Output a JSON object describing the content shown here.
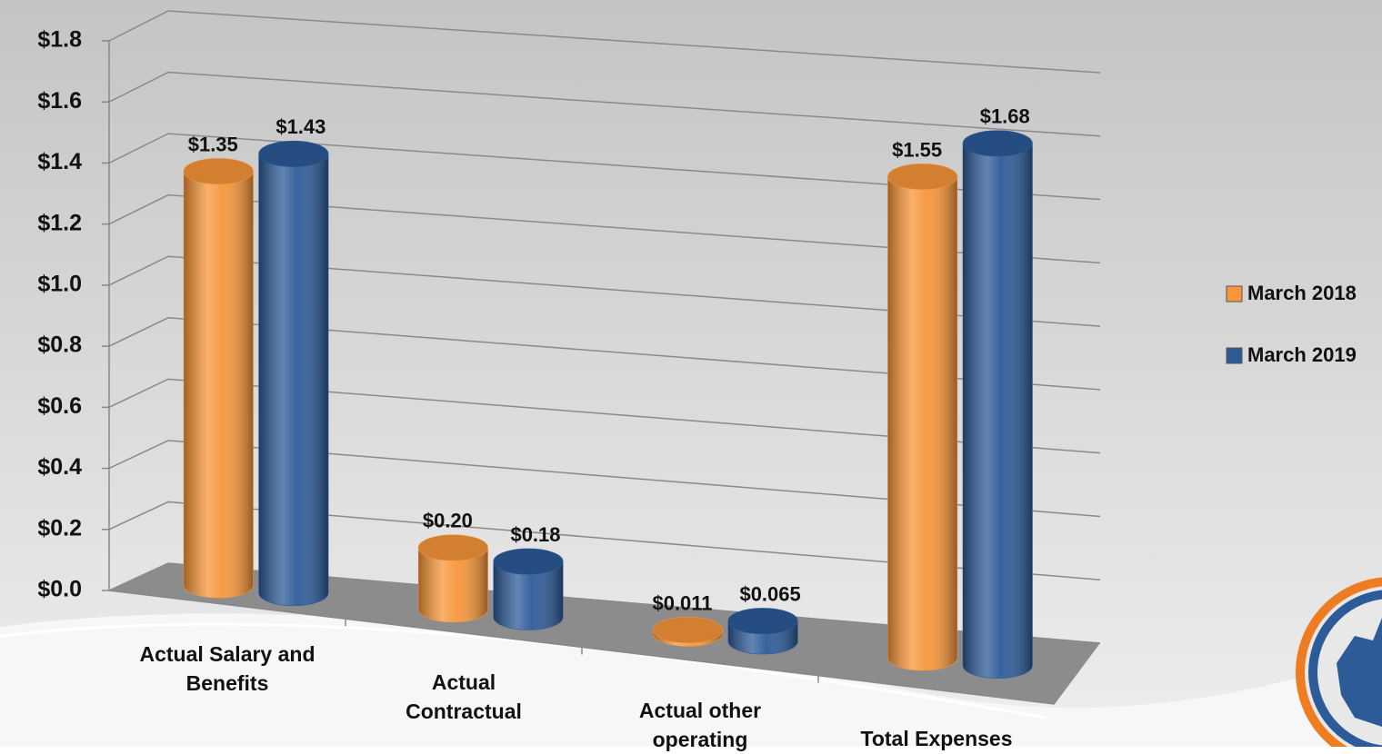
{
  "chart_data": {
    "type": "bar3d",
    "categories": [
      "Actual Salary and Benefits",
      "Actual Contractual",
      "Actual other operating",
      "Total Expenses"
    ],
    "series": [
      {
        "name": "March 2018",
        "color": "#f7963a",
        "values": [
          1.35,
          0.2,
          0.011,
          1.55
        ],
        "value_labels": [
          "$1.35",
          "$0.20",
          "$0.011",
          "$1.55"
        ]
      },
      {
        "name": "March 2019",
        "color": "#2d5b98",
        "values": [
          1.43,
          0.18,
          0.065,
          1.68
        ],
        "value_labels": [
          "$1.43",
          "$0.18",
          "$0.065",
          "$1.68"
        ]
      }
    ],
    "ylim": [
      0,
      1.8
    ],
    "yticks": [
      {
        "value": 0,
        "label": "$0.0"
      },
      {
        "value": 0.2,
        "label": "$0.2"
      },
      {
        "value": 0.4,
        "label": "$0.4"
      },
      {
        "value": 0.6,
        "label": "$0.6"
      },
      {
        "value": 0.8,
        "label": "$0.8"
      },
      {
        "value": 1.0,
        "label": "$1.0"
      },
      {
        "value": 1.2,
        "label": "$1.2"
      },
      {
        "value": 1.4,
        "label": "$1.4"
      },
      {
        "value": 1.6,
        "label": "$1.6"
      },
      {
        "value": 1.8,
        "label": "$1.8"
      }
    ],
    "grid": true,
    "legend": "right"
  }
}
